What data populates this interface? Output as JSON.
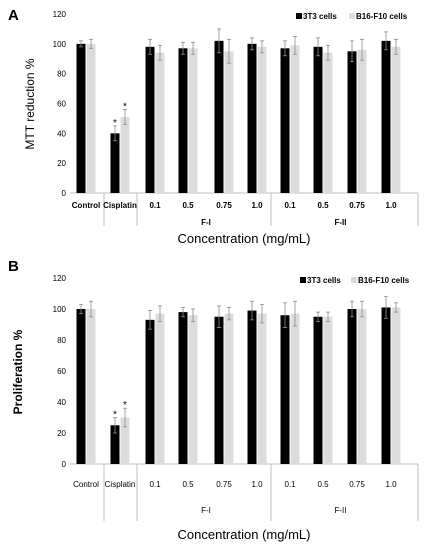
{
  "chart_data": [
    {
      "panel": "A",
      "type": "bar",
      "ylabel": "MTT reduction %",
      "xlabel": "Concentration (mg/mL)",
      "ylim": [
        0,
        120
      ],
      "yticks": [
        0,
        20,
        40,
        60,
        80,
        100,
        120
      ],
      "legend_position": "top-right",
      "grid": false,
      "categories": [
        "Control",
        "Cisplatin",
        "0.1",
        "0.5",
        "0.75",
        "1.0",
        "0.1",
        "0.5",
        "0.75",
        "1.0"
      ],
      "groups": [
        {
          "label": "",
          "span": [
            0,
            0
          ]
        },
        {
          "label": "",
          "span": [
            1,
            1
          ]
        },
        {
          "label": "F-I",
          "span": [
            2,
            5
          ]
        },
        {
          "label": "F-II",
          "span": [
            6,
            9
          ]
        }
      ],
      "series": [
        {
          "name": "3T3 cells",
          "color": "#000000",
          "values": [
            100,
            40,
            98,
            97,
            102,
            100,
            97,
            98,
            95,
            102
          ],
          "errors": [
            2,
            5,
            5,
            4,
            8,
            4,
            5,
            6,
            7,
            6
          ]
        },
        {
          "name": "B16-F10 cells",
          "color": "#dcdcdc",
          "values": [
            100,
            51,
            94,
            97,
            95,
            98,
            99,
            94,
            96,
            98
          ],
          "errors": [
            3,
            5,
            5,
            4,
            8,
            4,
            6,
            5,
            7,
            5
          ]
        }
      ],
      "annotations": [
        {
          "text": "*",
          "category": 1,
          "series": 0
        },
        {
          "text": "*",
          "category": 1,
          "series": 1
        }
      ]
    },
    {
      "panel": "B",
      "type": "bar",
      "ylabel": "Proliferation %",
      "xlabel": "Concentration (mg/mL)",
      "ylim": [
        0,
        120
      ],
      "yticks": [
        0,
        20,
        40,
        60,
        80,
        100,
        120
      ],
      "legend_position": "top-right",
      "grid": false,
      "categories": [
        "Control",
        "Cisplatin",
        "0.1",
        "0.5",
        "0.75",
        "1.0",
        "0.1",
        "0.5",
        "0.75",
        "1.0"
      ],
      "groups": [
        {
          "label": "",
          "span": [
            0,
            0
          ]
        },
        {
          "label": "",
          "span": [
            1,
            1
          ]
        },
        {
          "label": "F-I",
          "span": [
            2,
            5
          ]
        },
        {
          "label": "F-II",
          "span": [
            6,
            9
          ]
        }
      ],
      "series": [
        {
          "name": "3T3 cells",
          "color": "#000000",
          "values": [
            100,
            25,
            93,
            98,
            95,
            99,
            96,
            95,
            100,
            101
          ],
          "errors": [
            3,
            5,
            6,
            3,
            7,
            6,
            8,
            3,
            5,
            7
          ]
        },
        {
          "name": "B16-F10 cells",
          "color": "#dcdcdc",
          "values": [
            100,
            30,
            97,
            96,
            97,
            97,
            97,
            95,
            100,
            101
          ],
          "errors": [
            5,
            6,
            5,
            4,
            4,
            6,
            8,
            3,
            5,
            3
          ]
        }
      ],
      "annotations": [
        {
          "text": "*",
          "category": 1,
          "series": 0
        },
        {
          "text": "*",
          "category": 1,
          "series": 1
        }
      ]
    }
  ]
}
